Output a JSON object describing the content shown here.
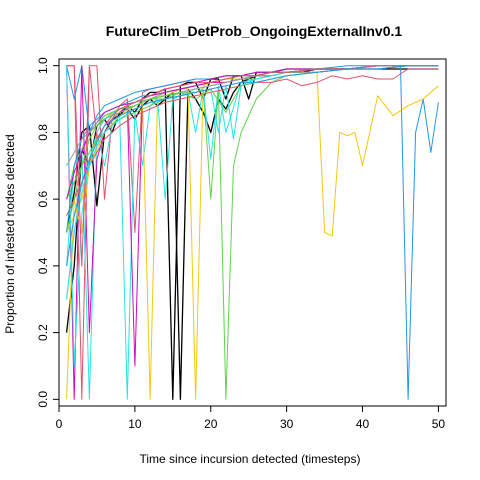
{
  "chart_data": {
    "type": "line",
    "title": "FutureClim_DetProb_OngoingExternalInv0.1",
    "xlabel": "Time since incursion detected (timesteps)",
    "ylabel": "Proportion of infested nodes detected",
    "xlim": [
      0,
      51
    ],
    "ylim": [
      -0.02,
      1.02
    ],
    "xticks": [
      0,
      10,
      20,
      30,
      40,
      50
    ],
    "yticks": [
      0.0,
      0.2,
      0.4,
      0.6,
      0.8,
      1.0
    ],
    "ytick_labels": [
      "0.0",
      "0.2",
      "0.4",
      "0.6",
      "0.8",
      "1.0"
    ],
    "grid": false,
    "legend": "none",
    "series": [
      {
        "color": "#000000",
        "x": [
          1,
          2,
          3,
          4,
          5,
          6,
          7,
          8,
          9,
          10,
          11,
          12,
          13,
          14,
          15,
          16,
          17,
          18,
          19,
          20,
          21,
          22,
          23,
          24,
          25,
          26,
          27,
          28,
          29,
          30,
          32,
          34,
          36,
          38,
          40,
          42,
          44,
          46,
          48,
          50
        ],
        "values": [
          0.5,
          0.62,
          0.8,
          0.82,
          0.58,
          0.8,
          0.84,
          0.85,
          0.88,
          0.86,
          0.9,
          0.92,
          0.92,
          0.93,
          0.0,
          0.94,
          0.95,
          0.95,
          0.9,
          0.96,
          0.96,
          0.9,
          0.97,
          0.97,
          0.9,
          0.98,
          0.98,
          0.98,
          0.98,
          0.98,
          0.98,
          0.99,
          0.99,
          0.99,
          0.99,
          0.99,
          0.99,
          0.99,
          0.99,
          0.99
        ]
      },
      {
        "color": "#000000",
        "x": [
          1,
          2,
          3,
          4,
          5,
          6,
          7,
          8,
          9,
          10,
          11,
          12,
          13,
          14,
          15,
          16,
          17,
          18,
          19,
          20,
          21,
          22,
          23,
          24,
          26,
          28,
          30,
          34,
          38,
          42,
          46,
          50
        ],
        "values": [
          0.2,
          0.4,
          0.75,
          0.7,
          0.82,
          0.84,
          0.8,
          0.86,
          0.87,
          0.84,
          0.88,
          0.9,
          0.88,
          0.9,
          0.92,
          0.0,
          0.93,
          0.9,
          0.86,
          0.8,
          0.9,
          0.87,
          0.92,
          0.95,
          0.97,
          0.98,
          0.99,
          0.99,
          0.99,
          1.0,
          1.0,
          1.0
        ]
      },
      {
        "color": "#DF536B",
        "x": [
          1,
          2,
          3,
          4,
          5,
          6,
          7,
          8,
          9,
          10,
          11,
          12,
          14,
          16,
          18,
          20,
          22,
          24,
          26,
          28,
          30,
          34,
          38,
          42,
          46,
          50
        ],
        "values": [
          1.0,
          1.0,
          0.0,
          1.0,
          1.0,
          0.6,
          0.84,
          0.88,
          0.9,
          0.5,
          0.92,
          0.93,
          0.94,
          0.95,
          0.96,
          0.96,
          0.97,
          0.97,
          0.98,
          0.98,
          0.99,
          0.99,
          0.99,
          1.0,
          1.0,
          1.0
        ]
      },
      {
        "color": "#61D04F",
        "x": [
          1,
          2,
          3,
          4,
          5,
          6,
          8,
          10,
          12,
          14,
          15,
          16,
          17,
          18,
          19,
          20,
          21,
          22,
          23,
          24,
          26,
          28,
          30,
          34,
          38,
          42,
          46,
          50
        ],
        "values": [
          0.6,
          0.7,
          0.75,
          0.8,
          0.82,
          0.84,
          0.86,
          0.88,
          0.9,
          0.9,
          0.91,
          0.92,
          0.92,
          0.92,
          0.93,
          0.6,
          0.93,
          0.0,
          0.7,
          0.8,
          0.9,
          0.95,
          0.97,
          0.98,
          0.99,
          1.0,
          1.0,
          1.0
        ]
      },
      {
        "color": "#2297E6",
        "x": [
          1,
          2,
          3,
          4,
          5,
          6,
          8,
          10,
          12,
          14,
          16,
          18,
          20,
          22,
          24,
          26,
          28,
          30,
          34,
          38,
          42,
          44,
          45,
          46,
          47,
          48,
          49,
          50
        ],
        "values": [
          1.0,
          0.9,
          1.0,
          0.8,
          0.85,
          0.88,
          0.9,
          0.92,
          0.93,
          0.94,
          0.95,
          0.96,
          0.96,
          0.97,
          0.97,
          0.98,
          0.98,
          0.99,
          0.99,
          1.0,
          1.0,
          1.0,
          1.0,
          0.0,
          0.8,
          0.9,
          0.74,
          0.89
        ]
      },
      {
        "color": "#28E2E5",
        "x": [
          1,
          2,
          3,
          4,
          5,
          6,
          7,
          8,
          9,
          10,
          11,
          12,
          13,
          14,
          15,
          16,
          17,
          18,
          19,
          20,
          21,
          22,
          24,
          26,
          28,
          30,
          34,
          38,
          42,
          46,
          50
        ],
        "values": [
          0.4,
          0.7,
          0.75,
          0.0,
          0.8,
          0.7,
          0.82,
          0.85,
          0.0,
          0.86,
          0.7,
          0.88,
          0.9,
          0.6,
          0.9,
          0.91,
          0.92,
          0.8,
          0.93,
          0.72,
          0.94,
          0.8,
          0.95,
          0.96,
          0.97,
          0.98,
          0.99,
          0.99,
          1.0,
          1.0,
          1.0
        ]
      },
      {
        "color": "#CD0BBC",
        "x": [
          1,
          2,
          3,
          4,
          5,
          6,
          7,
          8,
          9,
          10,
          11,
          12,
          13,
          14,
          16,
          18,
          20,
          22,
          24,
          26,
          28,
          30,
          34,
          38,
          42,
          46,
          50
        ],
        "values": [
          1.0,
          0.0,
          1.0,
          0.2,
          0.72,
          0.8,
          0.84,
          0.86,
          0.88,
          0.1,
          0.9,
          0.91,
          0.92,
          0.93,
          0.94,
          0.95,
          0.96,
          0.97,
          0.97,
          0.98,
          0.98,
          0.99,
          0.99,
          0.99,
          1.0,
          1.0,
          1.0
        ]
      },
      {
        "color": "#F5C710",
        "x": [
          1,
          2,
          3,
          4,
          5,
          6,
          8,
          10,
          12,
          14,
          16,
          18,
          20,
          22,
          24,
          26,
          28,
          30,
          32,
          34,
          35,
          36,
          37,
          38,
          39,
          40,
          42,
          44,
          46,
          48,
          50
        ],
        "values": [
          0.5,
          0.55,
          0.6,
          0.7,
          0.75,
          0.8,
          0.85,
          0.88,
          0.9,
          0.92,
          0.93,
          0.94,
          0.95,
          0.95,
          0.96,
          0.97,
          0.97,
          0.98,
          0.98,
          0.98,
          0.5,
          0.49,
          0.8,
          0.79,
          0.8,
          0.7,
          0.91,
          0.85,
          0.88,
          0.9,
          0.94
        ]
      },
      {
        "color": "#9E9E9E",
        "x": [
          1,
          2,
          3,
          4,
          5,
          6,
          8,
          10,
          12,
          14,
          16,
          18,
          20,
          22,
          24,
          26,
          28,
          30,
          34,
          38,
          42,
          46,
          50
        ],
        "values": [
          0.3,
          0.5,
          0.65,
          0.72,
          0.78,
          0.82,
          0.86,
          0.88,
          0.9,
          0.92,
          0.93,
          0.94,
          0.95,
          0.96,
          0.96,
          0.97,
          0.97,
          0.98,
          0.99,
          0.99,
          1.0,
          1.0,
          1.0
        ]
      },
      {
        "color": "#F5C710",
        "x": [
          1,
          2,
          3,
          4,
          5,
          6,
          7,
          8,
          9,
          10,
          11,
          12,
          13,
          14,
          15,
          16,
          17,
          18,
          19,
          20,
          22,
          24,
          26,
          28,
          30,
          34,
          38,
          42,
          46,
          50
        ],
        "values": [
          0.0,
          0.6,
          0.5,
          0.7,
          0.8,
          0.84,
          0.86,
          0.87,
          0.88,
          0.89,
          0.9,
          0.0,
          0.91,
          0.91,
          0.92,
          0.93,
          0.93,
          0.0,
          0.94,
          0.95,
          0.96,
          0.96,
          0.97,
          0.98,
          0.98,
          0.99,
          0.99,
          1.0,
          1.0,
          1.0
        ]
      },
      {
        "color": "#28E2E5",
        "x": [
          1,
          2,
          3,
          4,
          5,
          6,
          8,
          10,
          12,
          14,
          16,
          18,
          20,
          22,
          24,
          26,
          28,
          30,
          34,
          38,
          42,
          46,
          50
        ],
        "values": [
          1.0,
          0.1,
          0.55,
          0.72,
          0.8,
          0.84,
          0.87,
          0.88,
          0.9,
          0.91,
          0.92,
          0.93,
          0.94,
          0.95,
          0.96,
          0.97,
          0.97,
          0.98,
          0.99,
          0.99,
          1.0,
          1.0,
          1.0
        ]
      },
      {
        "color": "#61D04F",
        "x": [
          1,
          2,
          3,
          4,
          5,
          6,
          8,
          10,
          12,
          14,
          16,
          18,
          20,
          22,
          24,
          26,
          28,
          30,
          34,
          38,
          42,
          46,
          50
        ],
        "values": [
          0.6,
          0.65,
          0.7,
          0.74,
          0.78,
          0.8,
          0.84,
          0.86,
          0.88,
          0.9,
          0.92,
          0.93,
          0.94,
          0.95,
          0.96,
          0.96,
          0.97,
          0.98,
          0.98,
          0.99,
          0.99,
          1.0,
          1.0
        ]
      },
      {
        "color": "#DF536B",
        "x": [
          1,
          2,
          3,
          4,
          5,
          6,
          8,
          10,
          12,
          14,
          16,
          18,
          20,
          22,
          24,
          26,
          28,
          30,
          32,
          34,
          36,
          38,
          40,
          42,
          44,
          46,
          48,
          50
        ],
        "values": [
          0.55,
          0.6,
          0.65,
          0.7,
          0.74,
          0.78,
          0.82,
          0.85,
          0.87,
          0.89,
          0.9,
          0.91,
          0.92,
          0.93,
          0.94,
          0.95,
          0.95,
          0.96,
          0.94,
          0.95,
          0.97,
          0.96,
          0.97,
          0.96,
          0.96,
          0.99,
          0.99,
          0.99
        ]
      },
      {
        "color": "#2297E6",
        "x": [
          1,
          2,
          3,
          4,
          5,
          6,
          7,
          8,
          9,
          10,
          11,
          12,
          14,
          16,
          18,
          20,
          22,
          24,
          26,
          28,
          30,
          34,
          38,
          42,
          46,
          50
        ],
        "values": [
          0.5,
          0.7,
          0.78,
          0.82,
          0.84,
          0.86,
          0.87,
          0.88,
          0.89,
          0.9,
          0.91,
          0.91,
          0.92,
          0.93,
          0.94,
          0.95,
          0.96,
          0.97,
          0.97,
          0.98,
          0.98,
          0.99,
          0.99,
          1.0,
          1.0,
          1.0
        ]
      },
      {
        "color": "#CD0BBC",
        "x": [
          1,
          2,
          3,
          4,
          5,
          6,
          8,
          10,
          12,
          14,
          16,
          18,
          20,
          22,
          24,
          26,
          28,
          30,
          34,
          38,
          42,
          46,
          50
        ],
        "values": [
          0.6,
          0.68,
          0.74,
          0.8,
          0.83,
          0.86,
          0.88,
          0.89,
          0.91,
          0.92,
          0.93,
          0.94,
          0.95,
          0.95,
          0.96,
          0.97,
          0.97,
          0.98,
          0.99,
          0.99,
          0.99,
          1.0,
          1.0
        ]
      },
      {
        "color": "#9E9E9E",
        "x": [
          1,
          2,
          3,
          4,
          5,
          6,
          8,
          10,
          12,
          14,
          16,
          18,
          20,
          22,
          24,
          26,
          28,
          30,
          34,
          38,
          42,
          46,
          50
        ],
        "values": [
          0.7,
          0.74,
          0.78,
          0.8,
          0.83,
          0.85,
          0.87,
          0.89,
          0.9,
          0.91,
          0.92,
          0.93,
          0.94,
          0.95,
          0.96,
          0.97,
          0.97,
          0.98,
          0.98,
          0.99,
          0.99,
          1.0,
          1.0
        ]
      },
      {
        "color": "#61D04F",
        "x": [
          1,
          2,
          3,
          4,
          5,
          6,
          8,
          10,
          12,
          14,
          16,
          18,
          20,
          22,
          24,
          26,
          28,
          30,
          34,
          38,
          42,
          46,
          50
        ],
        "values": [
          0.5,
          0.6,
          0.7,
          0.78,
          0.82,
          0.85,
          0.87,
          0.88,
          0.9,
          0.91,
          0.92,
          0.9,
          0.93,
          0.86,
          0.94,
          0.95,
          0.96,
          0.97,
          0.98,
          0.99,
          0.99,
          1.0,
          1.0
        ]
      },
      {
        "color": "#28E2E5",
        "x": [
          1,
          2,
          3,
          4,
          5,
          6,
          8,
          10,
          12,
          14,
          16,
          18,
          20,
          21,
          22,
          23,
          24,
          26,
          28,
          30,
          34,
          38,
          42,
          46,
          50
        ],
        "values": [
          0.3,
          0.5,
          0.62,
          0.7,
          0.76,
          0.8,
          0.84,
          0.87,
          0.89,
          0.9,
          0.91,
          0.92,
          0.93,
          0.8,
          0.94,
          0.78,
          0.94,
          0.96,
          0.97,
          0.98,
          0.99,
          0.99,
          1.0,
          1.0,
          1.0
        ]
      },
      {
        "color": "#DF536B",
        "x": [
          1,
          2,
          3,
          4,
          5,
          6,
          7,
          8,
          9,
          10,
          11,
          12,
          13,
          14,
          16,
          18,
          20,
          22,
          24,
          26,
          28,
          30,
          34,
          38,
          42,
          46,
          50
        ],
        "values": [
          1.0,
          1.0,
          0.4,
          1.0,
          0.78,
          0.82,
          0.85,
          0.87,
          0.88,
          0.89,
          0.9,
          0.91,
          0.92,
          0.93,
          0.94,
          0.95,
          0.95,
          0.96,
          0.97,
          0.97,
          0.98,
          0.98,
          0.99,
          0.99,
          1.0,
          1.0,
          1.0
        ]
      },
      {
        "color": "#2297E6",
        "x": [
          1,
          2,
          3,
          4,
          5,
          6,
          8,
          10,
          12,
          14,
          16,
          18,
          20,
          22,
          24,
          26,
          28,
          30,
          34,
          38,
          42,
          46,
          50
        ],
        "values": [
          0.4,
          0.55,
          0.65,
          0.72,
          0.77,
          0.82,
          0.85,
          0.87,
          0.89,
          0.9,
          0.91,
          0.92,
          0.93,
          0.94,
          0.95,
          0.95,
          0.96,
          0.97,
          0.98,
          0.99,
          0.99,
          1.0,
          1.0
        ]
      }
    ]
  }
}
